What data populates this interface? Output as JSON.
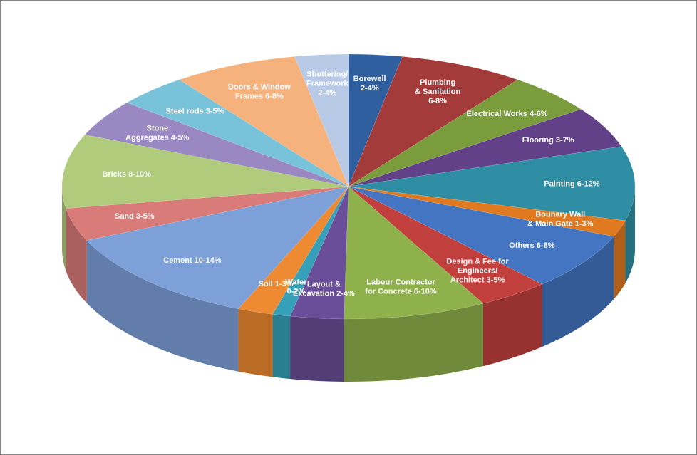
{
  "chart_data": {
    "type": "pie3d",
    "categories": [
      [
        "Borewell",
        "2-4%"
      ],
      [
        "Plumbing",
        "& Sanitation",
        "6-8%"
      ],
      [
        "Electrical Works 4-6%"
      ],
      [
        "Flooring 3-7%"
      ],
      [
        "Painting 6-12%"
      ],
      [
        "Bounary Wall",
        "& Main Gate 1-3%"
      ],
      [
        "Others 6-8%"
      ],
      [
        "Design & Fee for",
        "Engineers/",
        "Architect 3-5%"
      ],
      [
        "Labour Contractor",
        "for Concrete 6-10%"
      ],
      [
        "Layout &",
        "Excavation 2-4%"
      ],
      [
        "Water",
        "0-2%"
      ],
      [
        "Soil 1-3%"
      ],
      [
        "Cement 10-14%"
      ],
      [
        "Sand 3-5%"
      ],
      [
        "Bricks 8-10%"
      ],
      [
        "Stone",
        "Aggregates 4-5%"
      ],
      [
        "Steel rods 3-5%"
      ],
      [
        "Doors & Window",
        "Frames 6-8%"
      ],
      [
        "Shuttering/",
        "Framework",
        "2-4%"
      ]
    ],
    "values": [
      3,
      7,
      5,
      5,
      9,
      2,
      7,
      4,
      8,
      3,
      1,
      2,
      12,
      4,
      9,
      4.5,
      4,
      7,
      3
    ],
    "colors": [
      "#2f5f9f",
      "#a33b3b",
      "#7a9c3c",
      "#624189",
      "#2f8ea3",
      "#e07a21",
      "#4475c2",
      "#c1403d",
      "#8fb14c",
      "#6a4e99",
      "#37a0b9",
      "#ee8a31",
      "#7da0d9",
      "#d97b78",
      "#afcb7b",
      "#9a88c3",
      "#78c3d9",
      "#f6b27d",
      "#b9cae6"
    ]
  }
}
